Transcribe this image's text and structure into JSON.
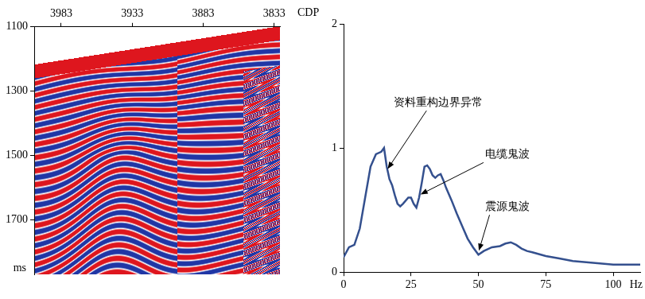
{
  "chart_data": [
    {
      "type": "seismic_section",
      "x_label": "CDP",
      "y_label": "ms",
      "xlim": [
        4002,
        3829
      ],
      "xticks": [
        3983,
        3933,
        3883,
        3833
      ],
      "ylim": [
        1870,
        1100
      ],
      "yticks": [
        1100,
        1300,
        1500,
        1700
      ],
      "grid": false
    },
    {
      "type": "line",
      "x": [
        0,
        2,
        4,
        6,
        8,
        10,
        12,
        14,
        15,
        16,
        17,
        18,
        19,
        20,
        21,
        22,
        24,
        25,
        26,
        27,
        28,
        29,
        30,
        31,
        32,
        33,
        34,
        35,
        36,
        37,
        38,
        40,
        42,
        44,
        46,
        48,
        50,
        52,
        55,
        58,
        60,
        62,
        64,
        66,
        68,
        70,
        75,
        80,
        85,
        90,
        95,
        100,
        105,
        110
      ],
      "values": [
        0.12,
        0.2,
        0.22,
        0.35,
        0.6,
        0.85,
        0.95,
        0.97,
        1.0,
        0.85,
        0.75,
        0.7,
        0.62,
        0.55,
        0.53,
        0.55,
        0.6,
        0.6,
        0.55,
        0.52,
        0.6,
        0.72,
        0.85,
        0.86,
        0.83,
        0.78,
        0.76,
        0.78,
        0.79,
        0.74,
        0.68,
        0.58,
        0.47,
        0.37,
        0.27,
        0.2,
        0.14,
        0.17,
        0.2,
        0.21,
        0.23,
        0.24,
        0.22,
        0.19,
        0.17,
        0.16,
        0.13,
        0.11,
        0.09,
        0.08,
        0.07,
        0.06,
        0.06,
        0.06
      ],
      "color": "#34508e",
      "x_label": "Hz",
      "xlim": [
        0,
        110
      ],
      "xticks": [
        0,
        25,
        50,
        75,
        100
      ],
      "ylim": [
        0,
        2
      ],
      "yticks": [
        0,
        1,
        2
      ],
      "grid": false,
      "annotations": [
        {
          "text": "资料重构边界异常",
          "x": 16,
          "y": 0.82
        },
        {
          "text": "电缆鬼波",
          "x": 28,
          "y": 0.62
        },
        {
          "text": "震源鬼波",
          "x": 50,
          "y": 0.16
        }
      ]
    }
  ]
}
